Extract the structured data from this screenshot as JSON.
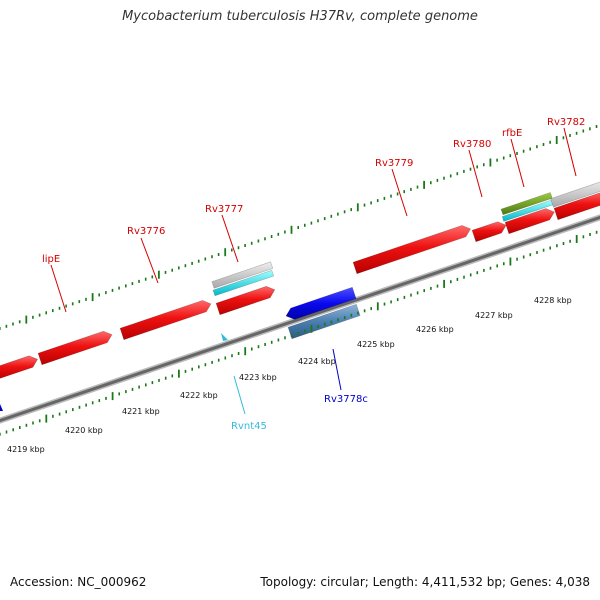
{
  "title": "Mycobacterium tuberculosis H37Rv, complete genome",
  "footer": {
    "accession": "Accession: NC_000962",
    "summary": "Topology: circular; Length: 4,411,532 bp; Genes: 4,038"
  },
  "scale_labels": [
    "4219 kbp",
    "4220 kbp",
    "4221 kbp",
    "4222 kbp",
    "4223 kbp",
    "4224 kbp",
    "4225 kbp",
    "4226 kbp",
    "4227 kbp",
    "4228 kbp"
  ],
  "gene_labels": [
    {
      "name": "lipE",
      "color": "#d40000"
    },
    {
      "name": "Rv3776",
      "color": "#d40000"
    },
    {
      "name": "Rv3777",
      "color": "#d40000"
    },
    {
      "name": "Rv3779",
      "color": "#d40000"
    },
    {
      "name": "Rv3780",
      "color": "#d40000"
    },
    {
      "name": "rfbE",
      "color": "#d40000"
    },
    {
      "name": "Rv3782",
      "color": "#d40000"
    },
    {
      "name": "Rvnt45",
      "color": "#33bbdd"
    },
    {
      "name": "Rv3778c",
      "color": "#0000cc"
    }
  ],
  "colors": {
    "forward_gene": "#ee1111",
    "reverse_gene": "#0a0aee",
    "reverse_gene_alt": "#4a7fb0",
    "cds_gray": "#c8c8c8",
    "cds_cyan": "#00e0e8",
    "cds_olive": "#6a9a20",
    "backbone": "#666666",
    "tick": "#1a7a1a"
  }
}
